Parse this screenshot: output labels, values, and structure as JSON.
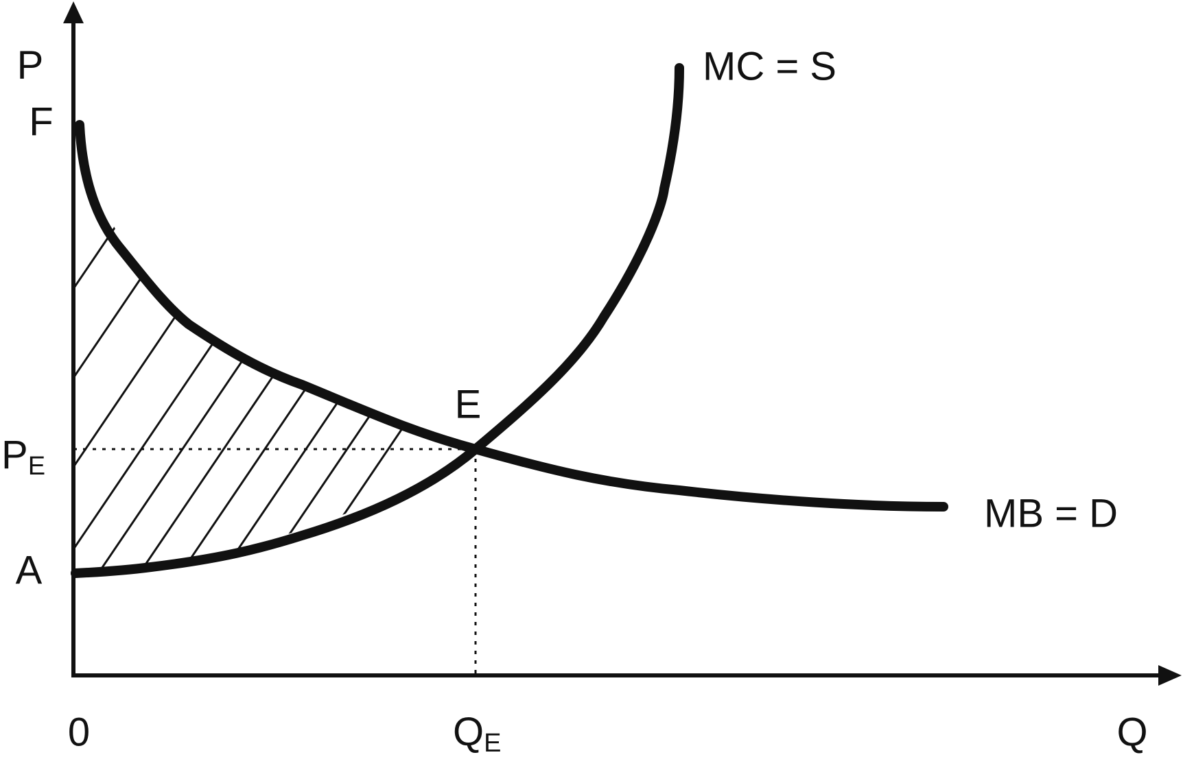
{
  "axes": {
    "y_label": "P",
    "x_label": "Q",
    "origin": "0"
  },
  "points": {
    "F": "F",
    "A": "A",
    "E": "E",
    "price_eq": {
      "main": "P",
      "sub": "E"
    },
    "quantity_eq": {
      "main": "Q",
      "sub": "E"
    }
  },
  "curves": {
    "supply": "MC = S",
    "demand": "MB = D"
  }
}
